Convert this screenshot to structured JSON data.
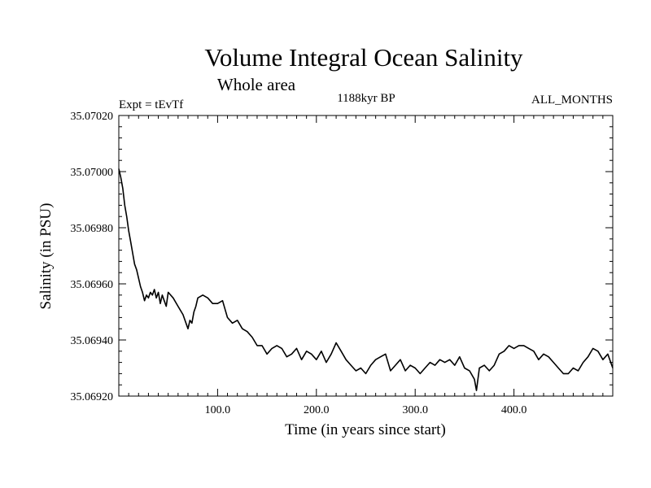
{
  "chart_data": {
    "type": "line",
    "title": "Volume Integral Ocean Salinity",
    "subtitle": "Whole area",
    "experiment_label": "Expt = tEvTf",
    "period_label": "1188kyr BP",
    "months_label": "ALL_MONTHS",
    "xlabel": "Time (in years since start)",
    "ylabel": "Salinity (in PSU)",
    "xlim": [
      0,
      500
    ],
    "ylim": [
      35.0692,
      35.0702
    ],
    "x_ticks": [
      100,
      200,
      300,
      400
    ],
    "x_tick_labels": [
      "100.0",
      "200.0",
      "300.0",
      "400.0"
    ],
    "y_ticks": [
      35.0692,
      35.0694,
      35.0696,
      35.0698,
      35.07,
      35.0702
    ],
    "y_tick_labels": [
      "35.06920",
      "35.06940",
      "35.06960",
      "35.06980",
      "35.07000",
      "35.07020"
    ],
    "series": [
      {
        "name": "salinity",
        "color": "#000000",
        "x": [
          0,
          2,
          4,
          6,
          8,
          10,
          12,
          14,
          16,
          18,
          20,
          22,
          24,
          26,
          28,
          30,
          32,
          34,
          36,
          38,
          40,
          42,
          44,
          46,
          48,
          50,
          55,
          60,
          65,
          70,
          72,
          74,
          76,
          78,
          80,
          85,
          90,
          95,
          100,
          105,
          110,
          115,
          120,
          125,
          130,
          135,
          140,
          145,
          150,
          155,
          160,
          165,
          170,
          175,
          180,
          185,
          190,
          195,
          200,
          205,
          210,
          215,
          220,
          225,
          230,
          235,
          240,
          245,
          250,
          255,
          260,
          265,
          270,
          275,
          280,
          285,
          290,
          295,
          300,
          305,
          310,
          315,
          320,
          325,
          330,
          335,
          340,
          345,
          350,
          355,
          360,
          362,
          365,
          370,
          375,
          380,
          385,
          390,
          395,
          400,
          405,
          410,
          415,
          420,
          425,
          430,
          435,
          440,
          445,
          450,
          455,
          460,
          465,
          470,
          475,
          480,
          485,
          490,
          495,
          500
        ],
        "y": [
          35.07001,
          35.06998,
          35.06994,
          35.06988,
          35.06984,
          35.06979,
          35.06975,
          35.06971,
          35.06967,
          35.06965,
          35.06962,
          35.06959,
          35.06957,
          35.06954,
          35.06956,
          35.06955,
          35.06957,
          35.06956,
          35.06958,
          35.06955,
          35.06957,
          35.06953,
          35.06956,
          35.06954,
          35.06952,
          35.06957,
          35.06955,
          35.06952,
          35.06949,
          35.06944,
          35.06947,
          35.06946,
          35.0695,
          35.06952,
          35.06955,
          35.06956,
          35.06955,
          35.06953,
          35.06953,
          35.06954,
          35.06948,
          35.06946,
          35.06947,
          35.06944,
          35.06943,
          35.06941,
          35.06938,
          35.06938,
          35.06935,
          35.06937,
          35.06938,
          35.06937,
          35.06934,
          35.06935,
          35.06937,
          35.06933,
          35.06936,
          35.06935,
          35.06933,
          35.06936,
          35.06932,
          35.06935,
          35.06939,
          35.06936,
          35.06933,
          35.06931,
          35.06929,
          35.0693,
          35.06928,
          35.06931,
          35.06933,
          35.06934,
          35.06935,
          35.06929,
          35.06931,
          35.06933,
          35.06929,
          35.06931,
          35.0693,
          35.06928,
          35.0693,
          35.06932,
          35.06931,
          35.06933,
          35.06932,
          35.06933,
          35.06931,
          35.06934,
          35.0693,
          35.06929,
          35.06926,
          35.06922,
          35.0693,
          35.06931,
          35.06929,
          35.06931,
          35.06935,
          35.06936,
          35.06938,
          35.06937,
          35.06938,
          35.06938,
          35.06937,
          35.06936,
          35.06933,
          35.06935,
          35.06934,
          35.06932,
          35.0693,
          35.06928,
          35.06928,
          35.0693,
          35.06929,
          35.06932,
          35.06934,
          35.06937,
          35.06936,
          35.06933,
          35.06935,
          35.0693
        ]
      }
    ]
  }
}
